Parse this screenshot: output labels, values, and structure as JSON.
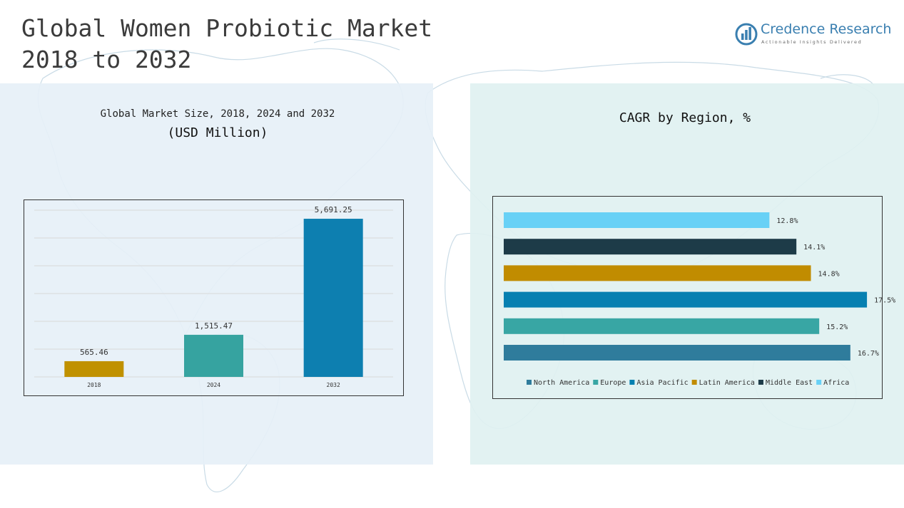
{
  "header": {
    "title_line1": "Global Women Probiotic Market",
    "title_line2": "2018 to 2032"
  },
  "logo": {
    "name": "Credence Research",
    "tagline": "Actionable Insights Delivered"
  },
  "left_panel": {
    "subtitle": "Global Market Size, 2018, 2024 and 2032",
    "unit": "(USD Million)"
  },
  "right_panel": {
    "title": "CAGR by Region, %"
  },
  "chart_data": [
    {
      "type": "bar",
      "categories": [
        "2018",
        "2024",
        "2032"
      ],
      "values": [
        565.46,
        1515.47,
        5691.25
      ],
      "value_labels": [
        "565.46",
        "1,515.47",
        "5,691.25"
      ],
      "colors": [
        "#c09100",
        "#36a3a0",
        "#0d7fb0"
      ],
      "ylim": [
        0,
        6000
      ],
      "grid": true
    },
    {
      "type": "bar",
      "orientation": "horizontal",
      "categories": [
        "Africa",
        "Middle East",
        "Latin America",
        "Asia Pacific",
        "Europe",
        "North America"
      ],
      "values": [
        12.8,
        14.1,
        14.8,
        17.5,
        15.2,
        16.7
      ],
      "value_labels": [
        "12.8%",
        "14.1%",
        "14.8%",
        "17.5%",
        "15.2%",
        "16.7%"
      ],
      "colors": [
        "#68d1f6",
        "#1d3b48",
        "#c18c00",
        "#0680b1",
        "#38a6a4",
        "#2f7c9c"
      ],
      "legend": [
        "North America",
        "Europe",
        "Asia Pacific",
        "Latin America",
        "Middle East",
        "Africa"
      ],
      "legend_colors": [
        "#2f7c9c",
        "#38a6a4",
        "#0680b1",
        "#c18c00",
        "#1d3b48",
        "#68d1f6"
      ],
      "legend_position": "bottom"
    }
  ]
}
